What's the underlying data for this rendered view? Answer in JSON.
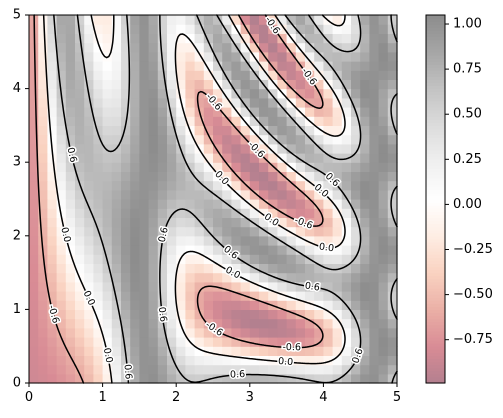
{
  "chart_data": {
    "type": "heatmap",
    "title": "",
    "xlabel": "",
    "ylabel": "",
    "xlim": [
      0,
      5
    ],
    "ylim": [
      0,
      5
    ],
    "x_ticks": [
      "0",
      "1",
      "2",
      "3",
      "4",
      "5"
    ],
    "y_ticks": [
      "0",
      "1",
      "2",
      "3",
      "4",
      "5"
    ],
    "grid_cells": [
      40,
      40
    ],
    "colormap": "RdGy (alpha 0.5)",
    "colorbar": {
      "ticks": [
        "1.00",
        "0.75",
        "0.50",
        "0.25",
        "0.00",
        "−0.25",
        "−0.50",
        "−0.75"
      ],
      "tick_values": [
        1.0,
        0.75,
        0.5,
        0.25,
        0.0,
        -0.25,
        -0.5,
        -0.75
      ],
      "range": [
        -0.99,
        1.05
      ]
    },
    "contour_levels": [
      -0.6,
      0.0,
      0.6
    ],
    "contour_label_text": {
      "neg": "-0.6",
      "zero": "0.0",
      "pos": "0.6"
    },
    "contour_colors": "#000000",
    "negative_contours": "dashed",
    "colors": {
      "low": "#b0404f",
      "mid": "#ffffff",
      "high": "#7f7f7f"
    }
  }
}
